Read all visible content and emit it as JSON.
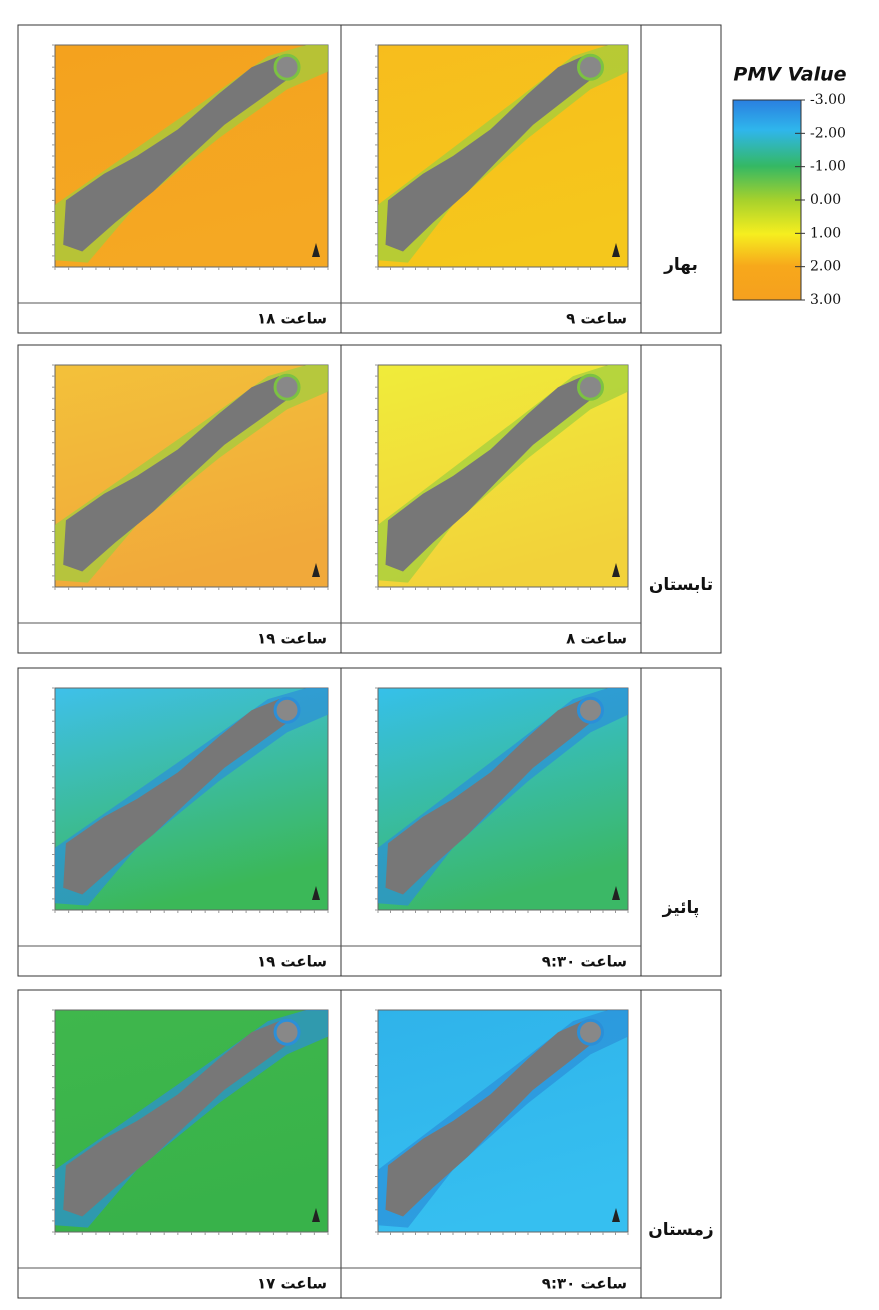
{
  "legend": {
    "title": "PMV Value",
    "labels": [
      "-3.00",
      "-2.00",
      "-1.00",
      "0.00",
      "1.00",
      "2.00",
      "3.00"
    ]
  },
  "rows": [
    {
      "season": "بهار",
      "panels": [
        {
          "caption": "ساعت ۱۸"
        },
        {
          "caption": "ساعت ۹"
        }
      ]
    },
    {
      "season": "تابستان",
      "panels": [
        {
          "caption": "ساعت ۱۹"
        },
        {
          "caption": "ساعت ۸"
        }
      ]
    },
    {
      "season": "پائیز",
      "panels": [
        {
          "caption": "ساعت ۱۹"
        },
        {
          "caption": "ساعت ۹:۳۰"
        }
      ]
    },
    {
      "season": "زمستان",
      "panels": [
        {
          "caption": "ساعت ۱۷"
        },
        {
          "caption": "ساعت ۹:۳۰"
        }
      ]
    }
  ]
}
